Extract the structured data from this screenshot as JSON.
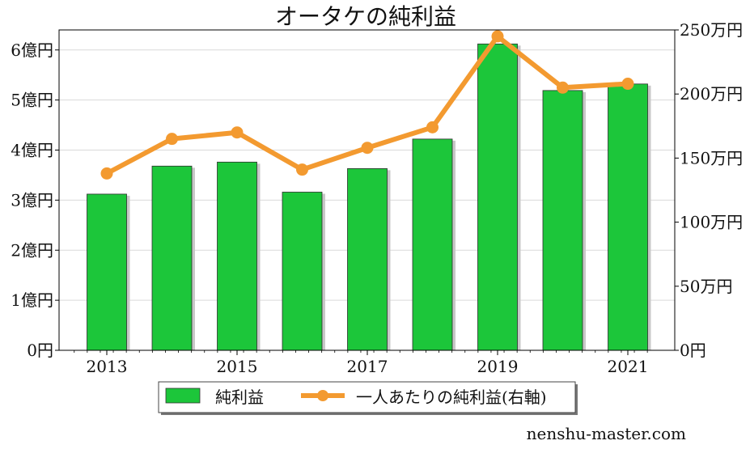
{
  "chart_data": {
    "type": "bar",
    "title": "オータケの純利益",
    "categories": [
      "2013",
      "2014",
      "2015",
      "2016",
      "2017",
      "2018",
      "2019",
      "2020",
      "2021"
    ],
    "x_tick_labels": [
      "2013",
      "2015",
      "2017",
      "2019",
      "2021"
    ],
    "series": [
      {
        "name": "純利益",
        "type": "bar",
        "axis": "left",
        "unit": "億円",
        "values": [
          3.12,
          3.68,
          3.76,
          3.16,
          3.63,
          4.22,
          6.12,
          5.19,
          5.32
        ]
      },
      {
        "name": "一人あたりの純利益(右軸)",
        "type": "line",
        "axis": "right",
        "unit": "万円",
        "values": [
          138,
          165,
          170,
          141,
          158,
          174,
          245,
          205,
          208
        ]
      }
    ],
    "y_left": {
      "ylim": [
        0,
        6.4
      ],
      "ticks": [
        0,
        1,
        2,
        3,
        4,
        5,
        6
      ],
      "tick_labels": [
        "0円",
        "1億円",
        "2億円",
        "3億円",
        "4億円",
        "5億円",
        "6億円"
      ]
    },
    "y_right": {
      "ylim": [
        0,
        250
      ],
      "ticks": [
        0,
        50,
        100,
        150,
        200,
        250
      ],
      "tick_labels": [
        "0円",
        "50万円",
        "100万円",
        "150万円",
        "200万円",
        "250万円"
      ]
    },
    "grid": true,
    "legend_position": "bottom-center",
    "colors": {
      "bar": "#1cc63a",
      "line": "#f39a30"
    }
  },
  "watermark": "nenshu-master.com"
}
